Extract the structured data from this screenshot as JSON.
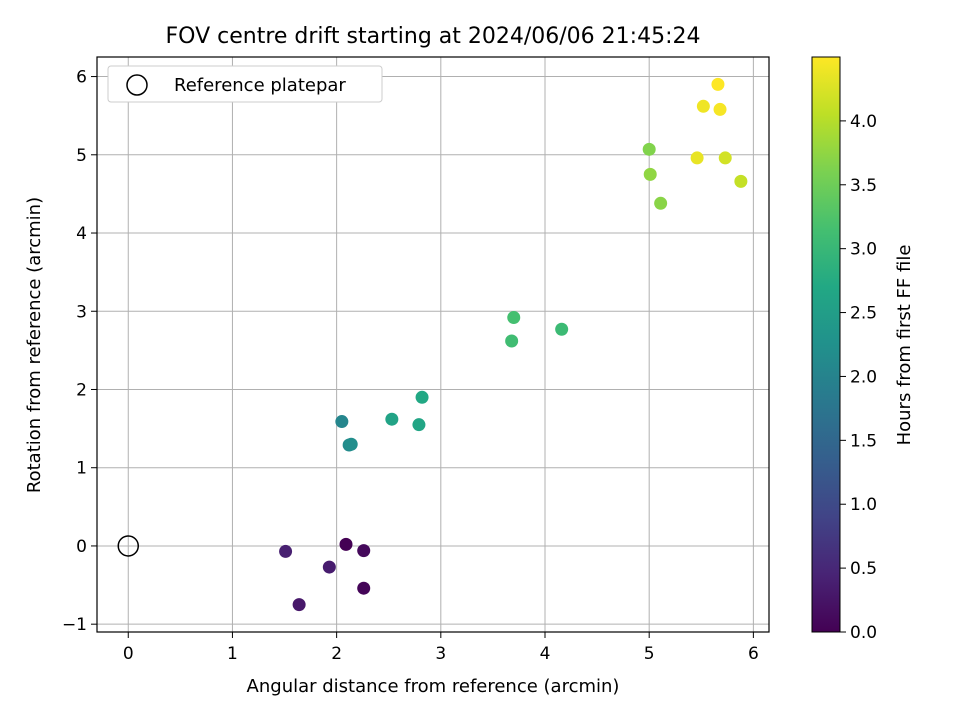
{
  "chart_data": {
    "type": "scatter",
    "title": "FOV centre drift starting at 2024/06/06 21:45:24",
    "xlabel": "Angular distance from reference (arcmin)",
    "ylabel": "Rotation from reference (arcmin)",
    "xlim": [
      -0.3,
      6.15
    ],
    "ylim": [
      -1.1,
      6.25
    ],
    "xticks": [
      0,
      1,
      2,
      3,
      4,
      5,
      6
    ],
    "yticks": [
      -1,
      0,
      1,
      2,
      3,
      4,
      5,
      6
    ],
    "grid": true,
    "legend": {
      "location": "upper-left",
      "entries": [
        "Reference platepar"
      ]
    },
    "reference_point": {
      "x": 0,
      "y": 0,
      "marker": "open-circle"
    },
    "colorbar": {
      "label": "Hours from first FF file",
      "range": [
        0.0,
        4.5
      ],
      "ticks": [
        0.0,
        0.5,
        1.0,
        1.5,
        2.0,
        2.5,
        3.0,
        3.5,
        4.0
      ],
      "colormap": "viridis"
    },
    "points": [
      {
        "x": 2.09,
        "y": 0.02,
        "hours": 0.0
      },
      {
        "x": 2.26,
        "y": -0.54,
        "hours": 0.05
      },
      {
        "x": 2.26,
        "y": -0.06,
        "hours": 0.1
      },
      {
        "x": 1.64,
        "y": -0.75,
        "hours": 0.3
      },
      {
        "x": 1.93,
        "y": -0.27,
        "hours": 0.35
      },
      {
        "x": 1.51,
        "y": -0.07,
        "hours": 0.4
      },
      {
        "x": 2.05,
        "y": 1.59,
        "hours": 2.05
      },
      {
        "x": 2.12,
        "y": 1.29,
        "hours": 2.15
      },
      {
        "x": 2.14,
        "y": 1.3,
        "hours": 2.2
      },
      {
        "x": 2.53,
        "y": 1.62,
        "hours": 2.6
      },
      {
        "x": 2.79,
        "y": 1.55,
        "hours": 2.65
      },
      {
        "x": 2.82,
        "y": 1.9,
        "hours": 2.7
      },
      {
        "x": 3.68,
        "y": 2.62,
        "hours": 3.1
      },
      {
        "x": 3.7,
        "y": 2.92,
        "hours": 3.15
      },
      {
        "x": 4.16,
        "y": 2.77,
        "hours": 3.05
      },
      {
        "x": 5.0,
        "y": 5.07,
        "hours": 3.65
      },
      {
        "x": 5.01,
        "y": 4.75,
        "hours": 3.75
      },
      {
        "x": 5.11,
        "y": 4.38,
        "hours": 3.7
      },
      {
        "x": 5.46,
        "y": 4.96,
        "hours": 4.35
      },
      {
        "x": 5.52,
        "y": 5.62,
        "hours": 4.4
      },
      {
        "x": 5.66,
        "y": 5.9,
        "hours": 4.5
      },
      {
        "x": 5.68,
        "y": 5.58,
        "hours": 4.45
      },
      {
        "x": 5.73,
        "y": 4.96,
        "hours": 4.2
      },
      {
        "x": 5.88,
        "y": 4.66,
        "hours": 4.1
      }
    ]
  }
}
